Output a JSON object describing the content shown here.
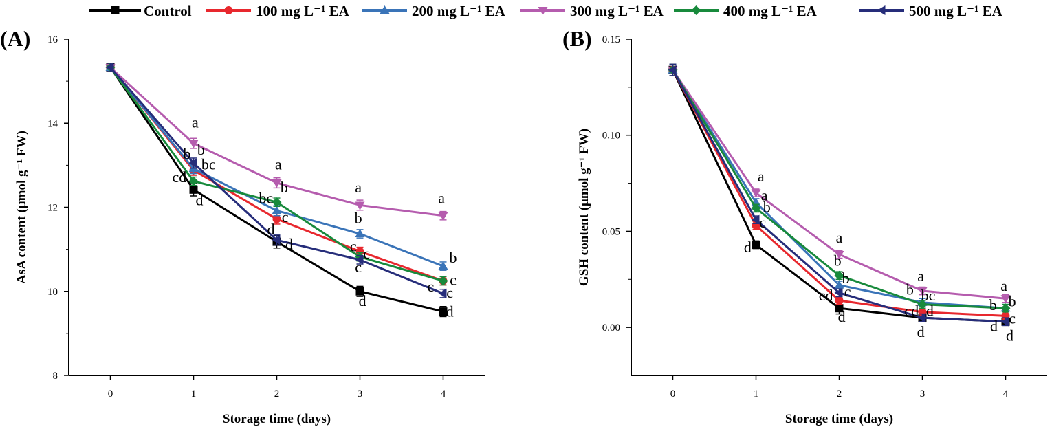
{
  "legend": [
    {
      "name": "Control",
      "color": "#000000",
      "marker": "square"
    },
    {
      "name": "100 mg L⁻¹ EA",
      "color": "#e8282e",
      "marker": "circle"
    },
    {
      "name": "200 mg L⁻¹ EA",
      "color": "#3a74b8",
      "marker": "triangle-up"
    },
    {
      "name": "300 mg L⁻¹ EA",
      "color": "#b55cae",
      "marker": "triangle-down"
    },
    {
      "name": "400 mg L⁻¹ EA",
      "color": "#188a3c",
      "marker": "diamond"
    },
    {
      "name": "500 mg L⁻¹ EA",
      "color": "#262d7a",
      "marker": "triangle-left"
    }
  ],
  "chart_data": [
    {
      "type": "line",
      "panel": "(A)",
      "xlabel": "Storage time (days)",
      "ylabel": "AsA content (μmol g⁻¹ FW)",
      "x": [
        0,
        1,
        2,
        3,
        4
      ],
      "xlim": [
        -0.5,
        4.5
      ],
      "ylim": [
        8,
        16
      ],
      "xticks": [
        "0",
        "1",
        "2",
        "3",
        "4"
      ],
      "yticks": [
        "8",
        "10",
        "12",
        "14",
        "16"
      ],
      "series": [
        {
          "name": "Control",
          "values": [
            15.33,
            12.42,
            11.18,
            10.0,
            9.52
          ],
          "error": [
            0.1,
            0.15,
            0.15,
            0.12,
            0.12
          ]
        },
        {
          "name": "100 mg L⁻¹ EA",
          "values": [
            15.33,
            12.88,
            11.72,
            10.95,
            10.25
          ],
          "error": [
            0.1,
            0.12,
            0.12,
            0.1,
            0.1
          ]
        },
        {
          "name": "200 mg L⁻¹ EA",
          "values": [
            15.33,
            12.92,
            11.92,
            11.37,
            10.6
          ],
          "error": [
            0.1,
            0.12,
            0.12,
            0.1,
            0.1
          ]
        },
        {
          "name": "300 mg L⁻¹ EA",
          "values": [
            15.33,
            13.52,
            12.58,
            12.05,
            11.8
          ],
          "error": [
            0.1,
            0.12,
            0.12,
            0.12,
            0.1
          ]
        },
        {
          "name": "400 mg L⁻¹ EA",
          "values": [
            15.33,
            12.62,
            12.12,
            10.82,
            10.25
          ],
          "error": [
            0.1,
            0.1,
            0.1,
            0.1,
            0.1
          ]
        },
        {
          "name": "500 mg L⁻¹ EA",
          "values": [
            15.33,
            13.05,
            11.22,
            10.75,
            9.95
          ],
          "error": [
            0.1,
            0.12,
            0.12,
            0.1,
            0.1
          ]
        }
      ],
      "annotations": [
        {
          "text": "a",
          "x": 1.02,
          "y": 13.9
        },
        {
          "text": "b",
          "x": 0.92,
          "y": 13.15
        },
        {
          "text": "b",
          "x": 1.09,
          "y": 13.25
        },
        {
          "text": "bc",
          "x": 1.18,
          "y": 12.9
        },
        {
          "text": "cd",
          "x": 0.83,
          "y": 12.6
        },
        {
          "text": "d",
          "x": 1.07,
          "y": 12.05
        },
        {
          "text": "a",
          "x": 2.02,
          "y": 12.9
        },
        {
          "text": "b",
          "x": 2.09,
          "y": 12.35
        },
        {
          "text": "bc",
          "x": 1.87,
          "y": 12.1
        },
        {
          "text": "c",
          "x": 2.1,
          "y": 11.65
        },
        {
          "text": "d",
          "x": 1.93,
          "y": 11.35
        },
        {
          "text": "d",
          "x": 2.15,
          "y": 11.0
        },
        {
          "text": "a",
          "x": 2.98,
          "y": 12.35
        },
        {
          "text": "b",
          "x": 2.98,
          "y": 11.62
        },
        {
          "text": "c",
          "x": 2.92,
          "y": 10.95
        },
        {
          "text": "c",
          "x": 3.08,
          "y": 10.78
        },
        {
          "text": "c",
          "x": 2.98,
          "y": 10.45
        },
        {
          "text": "d",
          "x": 3.03,
          "y": 9.65
        },
        {
          "text": "a",
          "x": 3.98,
          "y": 12.1
        },
        {
          "text": "b",
          "x": 4.12,
          "y": 10.68
        },
        {
          "text": "c",
          "x": 3.85,
          "y": 10.0
        },
        {
          "text": "c",
          "x": 4.12,
          "y": 10.15
        },
        {
          "text": "c",
          "x": 4.08,
          "y": 9.85
        },
        {
          "text": "d",
          "x": 4.08,
          "y": 9.4
        }
      ]
    },
    {
      "type": "line",
      "panel": "(B)",
      "xlabel": "Storage time (days)",
      "ylabel": "GSH content (μmol g⁻¹ FW)",
      "x": [
        0,
        1,
        2,
        3,
        4
      ],
      "xlim": [
        -0.5,
        4.5
      ],
      "ylim": [
        -0.025,
        0.15
      ],
      "xticks": [
        "0",
        "1",
        "2",
        "3",
        "4"
      ],
      "yticks": [
        "0.00",
        "0.05",
        "0.10",
        "0.15"
      ],
      "series": [
        {
          "name": "Control",
          "values": [
            0.134,
            0.043,
            0.01,
            0.005,
            0.003
          ],
          "error": [
            0.003,
            0.002,
            0.003,
            0.002,
            0.002
          ]
        },
        {
          "name": "100 mg L⁻¹ EA",
          "values": [
            0.134,
            0.053,
            0.014,
            0.008,
            0.006
          ],
          "error": [
            0.003,
            0.002,
            0.002,
            0.002,
            0.002
          ]
        },
        {
          "name": "200 mg L⁻¹ EA",
          "values": [
            0.134,
            0.065,
            0.022,
            0.013,
            0.01
          ],
          "error": [
            0.003,
            0.002,
            0.002,
            0.002,
            0.002
          ]
        },
        {
          "name": "300 mg L⁻¹ EA",
          "values": [
            0.134,
            0.07,
            0.038,
            0.019,
            0.015
          ],
          "error": [
            0.003,
            0.002,
            0.002,
            0.002,
            0.002
          ]
        },
        {
          "name": "400 mg L⁻¹ EA",
          "values": [
            0.134,
            0.062,
            0.027,
            0.012,
            0.01
          ],
          "error": [
            0.003,
            0.002,
            0.002,
            0.002,
            0.002
          ]
        },
        {
          "name": "500 mg L⁻¹ EA",
          "values": [
            0.134,
            0.056,
            0.018,
            0.005,
            0.003
          ],
          "error": [
            0.003,
            0.002,
            0.002,
            0.002,
            0.002
          ]
        }
      ],
      "annotations": [
        {
          "text": "a",
          "x": 1.06,
          "y": 0.076
        },
        {
          "text": "a",
          "x": 1.1,
          "y": 0.066
        },
        {
          "text": "b",
          "x": 1.13,
          "y": 0.06
        },
        {
          "text": "c",
          "x": 1.08,
          "y": 0.052
        },
        {
          "text": "d",
          "x": 0.9,
          "y": 0.039
        },
        {
          "text": "a",
          "x": 2.0,
          "y": 0.044
        },
        {
          "text": "b",
          "x": 1.98,
          "y": 0.032
        },
        {
          "text": "b",
          "x": 2.08,
          "y": 0.023
        },
        {
          "text": "c",
          "x": 2.1,
          "y": 0.016
        },
        {
          "text": "cd",
          "x": 1.84,
          "y": 0.014
        },
        {
          "text": "d",
          "x": 2.03,
          "y": 0.003
        },
        {
          "text": "a",
          "x": 2.98,
          "y": 0.024
        },
        {
          "text": "b",
          "x": 2.85,
          "y": 0.017
        },
        {
          "text": "bc",
          "x": 3.07,
          "y": 0.014
        },
        {
          "text": "cd",
          "x": 2.87,
          "y": 0.006
        },
        {
          "text": "d",
          "x": 3.09,
          "y": 0.006
        },
        {
          "text": "d",
          "x": 2.98,
          "y": -0.005
        },
        {
          "text": "a",
          "x": 3.98,
          "y": 0.019
        },
        {
          "text": "b",
          "x": 3.85,
          "y": 0.009
        },
        {
          "text": "b",
          "x": 4.08,
          "y": 0.011
        },
        {
          "text": "c",
          "x": 4.08,
          "y": 0.002
        },
        {
          "text": "d",
          "x": 3.86,
          "y": -0.002
        },
        {
          "text": "d",
          "x": 4.05,
          "y": -0.007
        }
      ]
    }
  ]
}
